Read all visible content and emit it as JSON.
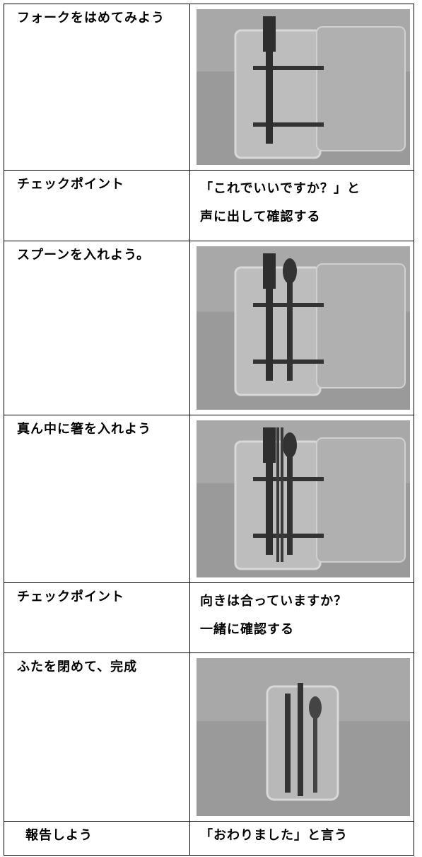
{
  "table": {
    "rows": [
      {
        "label": "フォークをはめてみよう"
      },
      {
        "label": "チェックポイント",
        "note": [
          "「これでいいですか？」と",
          "声に出して確認する"
        ]
      },
      {
        "label": "スプーンを入れよう。"
      },
      {
        "label": "真ん中に箸を入れよう"
      },
      {
        "label": "チェックポイント",
        "note": [
          "向きは合っていますか？",
          "一緒に確認する"
        ]
      },
      {
        "label": "ふたを閉めて、完成"
      },
      {
        "label": "報告しよう",
        "note": [
          "「おわりました」と言う"
        ]
      }
    ]
  }
}
